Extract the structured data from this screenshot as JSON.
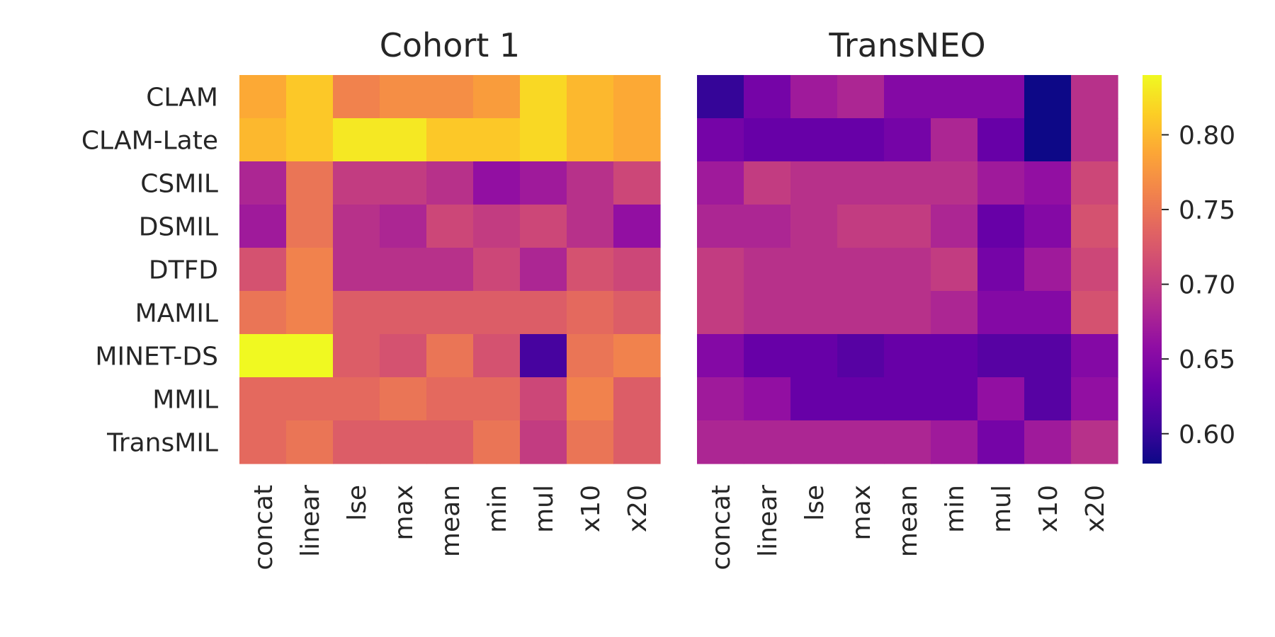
{
  "chart_data": [
    {
      "type": "heatmap",
      "title": "Cohort 1",
      "rows": [
        "CLAM",
        "CLAM-Late",
        "CSMIL",
        "DSMIL",
        "DTFD",
        "MAMIL",
        "MINET-DS",
        "MMIL",
        "TransMIL"
      ],
      "columns": [
        "concat",
        "linear",
        "lse",
        "max",
        "mean",
        "min",
        "mul",
        "x10",
        "x20"
      ],
      "values": [
        [
          0.79,
          0.81,
          0.76,
          0.77,
          0.77,
          0.78,
          0.82,
          0.8,
          0.79
        ],
        [
          0.8,
          0.81,
          0.83,
          0.83,
          0.81,
          0.81,
          0.82,
          0.8,
          0.79
        ],
        [
          0.68,
          0.75,
          0.7,
          0.7,
          0.69,
          0.66,
          0.67,
          0.69,
          0.71
        ],
        [
          0.67,
          0.75,
          0.69,
          0.68,
          0.71,
          0.7,
          0.71,
          0.69,
          0.66
        ],
        [
          0.72,
          0.76,
          0.69,
          0.69,
          0.69,
          0.71,
          0.68,
          0.72,
          0.71
        ],
        [
          0.75,
          0.76,
          0.73,
          0.73,
          0.73,
          0.73,
          0.73,
          0.74,
          0.73
        ],
        [
          0.84,
          0.84,
          0.73,
          0.72,
          0.75,
          0.72,
          0.61,
          0.75,
          0.76
        ],
        [
          0.74,
          0.74,
          0.74,
          0.75,
          0.74,
          0.74,
          0.71,
          0.76,
          0.73
        ],
        [
          0.74,
          0.75,
          0.73,
          0.73,
          0.73,
          0.75,
          0.7,
          0.75,
          0.73
        ]
      ]
    },
    {
      "type": "heatmap",
      "title": "TransNEO",
      "rows": [
        "CLAM",
        "CLAM-Late",
        "CSMIL",
        "DSMIL",
        "DTFD",
        "MAMIL",
        "MINET-DS",
        "MMIL",
        "TransMIL"
      ],
      "columns": [
        "concat",
        "linear",
        "lse",
        "max",
        "mean",
        "min",
        "mul",
        "x10",
        "x20"
      ],
      "values": [
        [
          0.6,
          0.64,
          0.67,
          0.68,
          0.65,
          0.65,
          0.65,
          0.58,
          0.69
        ],
        [
          0.64,
          0.63,
          0.63,
          0.63,
          0.64,
          0.68,
          0.63,
          0.58,
          0.69
        ],
        [
          0.67,
          0.7,
          0.69,
          0.69,
          0.69,
          0.69,
          0.67,
          0.66,
          0.71
        ],
        [
          0.68,
          0.68,
          0.69,
          0.7,
          0.7,
          0.68,
          0.63,
          0.65,
          0.72
        ],
        [
          0.7,
          0.69,
          0.69,
          0.69,
          0.69,
          0.7,
          0.64,
          0.67,
          0.71
        ],
        [
          0.7,
          0.69,
          0.69,
          0.69,
          0.69,
          0.68,
          0.65,
          0.65,
          0.72
        ],
        [
          0.65,
          0.63,
          0.63,
          0.62,
          0.63,
          0.63,
          0.62,
          0.62,
          0.65
        ],
        [
          0.67,
          0.66,
          0.63,
          0.63,
          0.63,
          0.63,
          0.66,
          0.62,
          0.66
        ],
        [
          0.68,
          0.68,
          0.68,
          0.68,
          0.68,
          0.67,
          0.64,
          0.67,
          0.69
        ]
      ]
    }
  ],
  "colorbar": {
    "colormap": "plasma",
    "range": [
      0.58,
      0.84
    ],
    "ticks": [
      0.6,
      0.65,
      0.7,
      0.75,
      0.8
    ],
    "tick_labels": [
      "0.60",
      "0.65",
      "0.70",
      "0.75",
      "0.80"
    ]
  }
}
